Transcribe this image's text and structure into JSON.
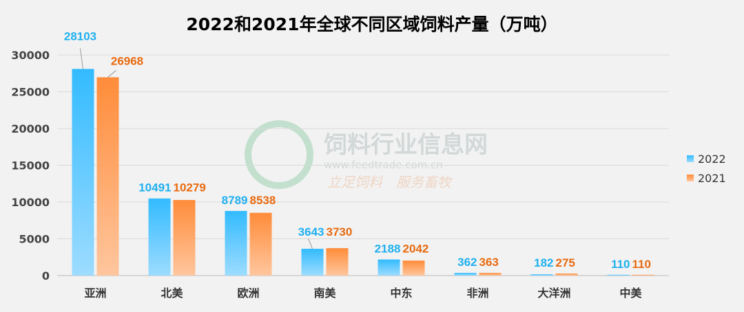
{
  "chart_data": {
    "type": "bar",
    "title": "2022和2021年全球不同区域饲料产量（万吨）",
    "categories": [
      "亚洲",
      "北美",
      "欧洲",
      "南美",
      "中东",
      "非洲",
      "大洋洲",
      "中美"
    ],
    "series": [
      {
        "name": "2022",
        "color": "#33bbff",
        "label_color": "#1fb0f0",
        "values": [
          28103,
          10491,
          8789,
          3643,
          2188,
          362,
          182,
          110
        ]
      },
      {
        "name": "2021",
        "color": "#ff8c3a",
        "label_color": "#e86a10",
        "values": [
          26968,
          10279,
          8538,
          3730,
          2042,
          363,
          275,
          110
        ]
      }
    ],
    "yticks": [
      0,
      5000,
      10000,
      15000,
      20000,
      25000,
      30000
    ],
    "ylim": [
      0,
      30000
    ],
    "grid": true,
    "legend_position": "right"
  },
  "watermark": {
    "name": "饲料行业信息网",
    "url": "www.feedtrade.com.cn",
    "slogan": "立足饲料　服务畜牧"
  }
}
